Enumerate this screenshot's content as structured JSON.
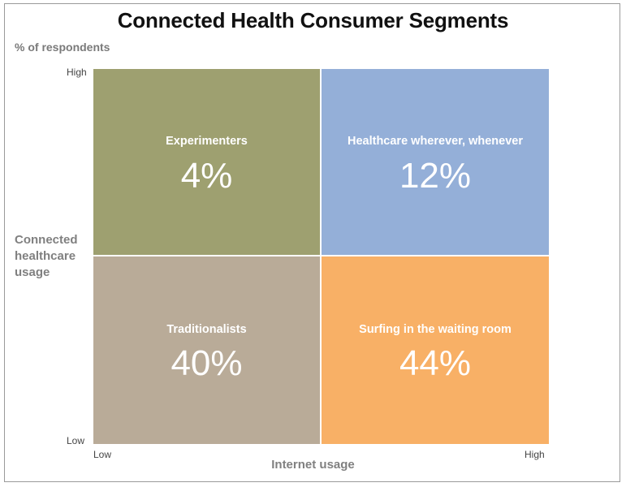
{
  "title": "Connected Health Consumer Segments",
  "unit_label": "% of respondents",
  "chart_data": {
    "type": "heatmap",
    "title": "Connected Health Consumer Segments",
    "subtitle": "% of respondents",
    "xlabel": "Internet usage",
    "ylabel": "Connected healthcare usage",
    "x_ticks": [
      "Low",
      "High"
    ],
    "y_ticks": [
      "Low",
      "High"
    ],
    "segments": [
      {
        "name": "Experimenters",
        "value": 4,
        "display": "4%",
        "internet_usage": "Low",
        "connected_healthcare_usage": "High",
        "color": "#9EA070"
      },
      {
        "name": "Healthcare wherever, whenever",
        "value": 12,
        "display": "12%",
        "internet_usage": "High",
        "connected_healthcare_usage": "High",
        "color": "#94AFD8"
      },
      {
        "name": "Traditionalists",
        "value": 40,
        "display": "40%",
        "internet_usage": "Low",
        "connected_healthcare_usage": "Low",
        "color": "#B9AB98"
      },
      {
        "name": "Surfing in the waiting room",
        "value": 44,
        "display": "44%",
        "internet_usage": "High",
        "connected_healthcare_usage": "Low",
        "color": "#F8B066"
      }
    ]
  }
}
